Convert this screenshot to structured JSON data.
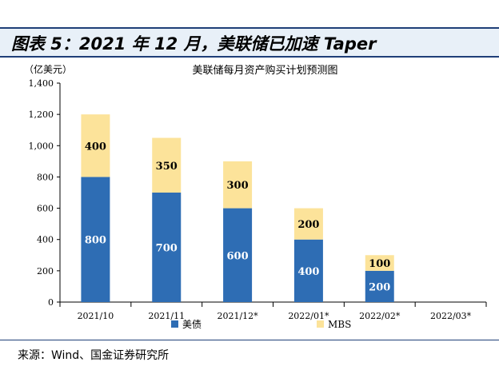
{
  "figure": {
    "title": "图表 5：2021 年 12 月，美联储已加速 Taper",
    "source": "来源：Wind、国金证券研究所"
  },
  "chart_data": {
    "type": "bar",
    "stacked": true,
    "title": "美联储每月资产购买计划预测图",
    "unit_label": "（亿美元）",
    "categories": [
      "2021/10",
      "2021/11",
      "2021/12*",
      "2022/01*",
      "2022/02*",
      "2022/03*"
    ],
    "series": [
      {
        "name": "美债",
        "color": "#2e6db4",
        "label_color": "#ffffff",
        "values": [
          800,
          700,
          600,
          400,
          200,
          0
        ]
      },
      {
        "name": "MBS",
        "color": "#fce39a",
        "label_color": "#000000",
        "values": [
          400,
          350,
          300,
          200,
          100,
          0
        ]
      }
    ],
    "ylim": [
      0,
      1400
    ],
    "yticks": [
      0,
      200,
      400,
      600,
      800,
      1000,
      1200,
      1400
    ],
    "ytick_labels": [
      "0",
      "200",
      "400",
      "600",
      "800",
      "1,000",
      "1,200",
      "1,400"
    ],
    "legend_position": "bottom",
    "grid": false
  }
}
